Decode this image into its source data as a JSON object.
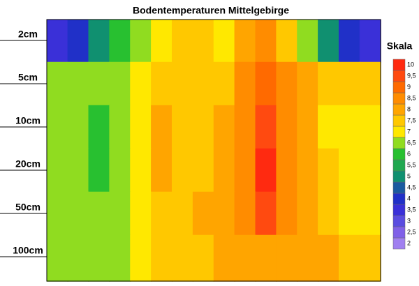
{
  "chart_data": {
    "type": "heatmap",
    "title": "Bodentemperaturen Mittelgebirge",
    "legend_title": "Skala",
    "rows": [
      "2cm",
      "5cm",
      "10cm",
      "20cm",
      "50cm",
      "100cm"
    ],
    "z": [
      [
        3.5,
        4,
        5,
        6,
        6.5,
        7,
        7.5,
        7.5,
        7,
        8,
        8.5,
        7.5,
        6.5,
        5,
        4,
        3.5
      ],
      [
        6.5,
        6.5,
        6.5,
        6.5,
        7,
        7.5,
        7.5,
        7.5,
        7.5,
        8.5,
        9,
        8.5,
        8,
        7.5,
        7.5,
        7.5
      ],
      [
        6.5,
        6.5,
        6,
        6.5,
        7,
        8,
        7.5,
        7.5,
        8,
        8.5,
        9.5,
        8.5,
        8,
        7,
        7,
        7
      ],
      [
        6.5,
        6.5,
        6,
        6.5,
        7,
        8,
        7.5,
        7.5,
        8,
        8.5,
        10,
        8.5,
        8,
        7.5,
        7,
        7
      ],
      [
        6.5,
        6.5,
        6.5,
        6.5,
        7,
        7.5,
        7.5,
        8,
        8,
        8.5,
        9.5,
        8.5,
        8,
        7.5,
        7,
        7
      ],
      [
        6.5,
        6.5,
        6.5,
        6.5,
        7,
        7.5,
        7.5,
        7.5,
        8,
        8,
        8,
        8,
        8,
        8,
        7.5,
        7.5
      ]
    ],
    "scale_ticks": [
      2,
      {
        "value": 2.5,
        "label": "2,5"
      },
      3,
      {
        "value": 3.5,
        "label": "3,5"
      },
      4,
      {
        "value": 4.5,
        "label": "4,5"
      },
      5,
      {
        "value": 5.5,
        "label": "5,5"
      },
      6,
      {
        "value": 6.5,
        "label": "6,5"
      },
      7,
      {
        "value": 7.5,
        "label": "7,5"
      },
      8,
      {
        "value": 8.5,
        "label": "8,5"
      },
      9,
      {
        "value": 9.5,
        "label": "9,5"
      },
      10
    ],
    "scale_colors": [
      "#a080f0",
      "#8060e8",
      "#5a4ce0",
      "#3a30d8",
      "#2030c8",
      "#1a5aa0",
      "#109070",
      "#20a850",
      "#28c030",
      "#90dc20",
      "#ffe800",
      "#ffc800",
      "#ffa500",
      "#ff8c00",
      "#ff6a00",
      "#ff4a10",
      "#ff2a10"
    ]
  }
}
